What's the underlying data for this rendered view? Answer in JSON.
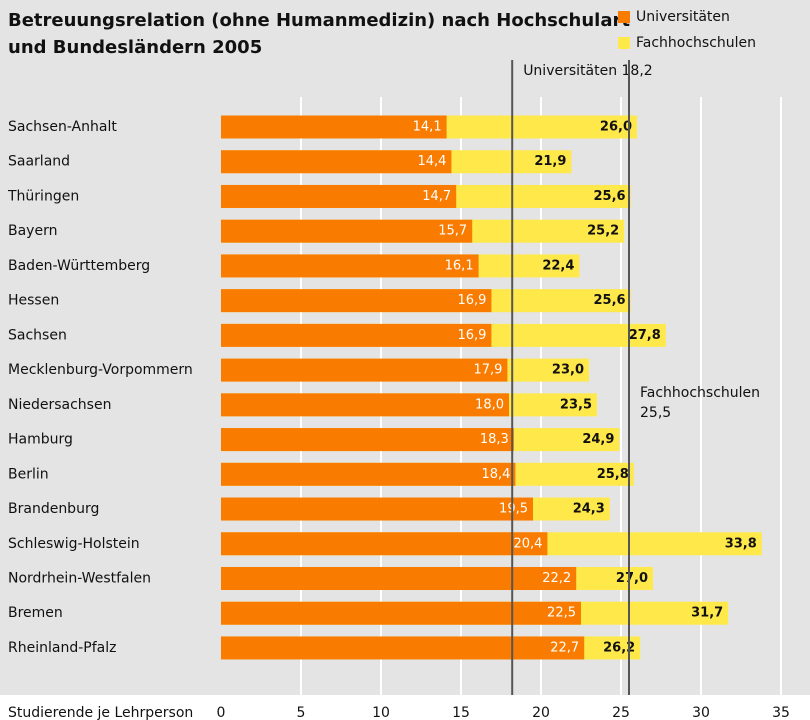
{
  "chart_data": {
    "type": "bar",
    "orientation": "horizontal",
    "title": [
      "Betreuungsrelation (ohne Humanmedizin) nach Hochschulart",
      "und Bundesländern 2005"
    ],
    "xlabel": "Studierende je Lehrperson",
    "categories": [
      "Sachsen-Anhalt",
      "Saarland",
      "Thüringen",
      "Bayern",
      "Baden-Württemberg",
      "Hessen",
      "Sachsen",
      "Mecklenburg-Vorpommern",
      "Niedersachsen",
      "Hamburg",
      "Berlin",
      "Brandenburg",
      "Schleswig-Holstein",
      "Nordrhein-Westfalen",
      "Bremen",
      "Rheinland-Pfalz"
    ],
    "series": [
      {
        "name": "Universitäten",
        "color": "#f97b00",
        "values": [
          14.1,
          14.4,
          14.7,
          15.7,
          16.1,
          16.9,
          16.9,
          17.9,
          18.0,
          18.3,
          18.4,
          19.5,
          20.4,
          22.2,
          22.5,
          22.7
        ],
        "value_labels": [
          "14,1",
          "14,4",
          "14,7",
          "15,7",
          "16,1",
          "16,9",
          "16,9",
          "17,9",
          "18,0",
          "18,3",
          "18,4",
          "19,5",
          "20,4",
          "22,2",
          "22,5",
          "22,7"
        ]
      },
      {
        "name": "Fachhochschulen",
        "color": "#ffe84a",
        "values": [
          26.0,
          21.9,
          25.6,
          25.2,
          22.4,
          25.6,
          27.8,
          23.0,
          23.5,
          24.9,
          25.8,
          24.3,
          33.8,
          27.0,
          31.7,
          26.2
        ],
        "value_labels": [
          "26,0",
          "21,9",
          "25,6",
          "25,2",
          "22,4",
          "25,6",
          "27,8",
          "23,0",
          "23,5",
          "24,9",
          "25,8",
          "24,3",
          "33,8",
          "27,0",
          "31,7",
          "26,2"
        ]
      }
    ],
    "reference_lines": [
      {
        "value": 18.2,
        "lines": [
          "Universitäten 18,2"
        ]
      },
      {
        "value": 25.5,
        "lines": [
          "Fachhochschulen",
          "25,5"
        ]
      }
    ],
    "xlim": [
      0,
      35
    ],
    "xticks": [
      0,
      5,
      10,
      15,
      20,
      25,
      30,
      35
    ],
    "grid": true,
    "legend": "top-right"
  }
}
